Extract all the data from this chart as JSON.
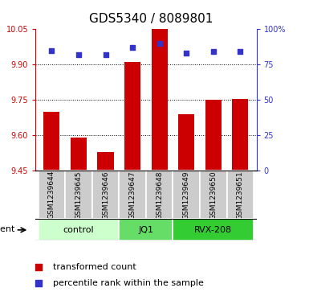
{
  "title": "GDS5340 / 8089801",
  "samples": [
    "GSM1239644",
    "GSM1239645",
    "GSM1239646",
    "GSM1239647",
    "GSM1239648",
    "GSM1239649",
    "GSM1239650",
    "GSM1239651"
  ],
  "bar_values": [
    9.7,
    9.59,
    9.53,
    9.91,
    10.05,
    9.69,
    9.75,
    9.755
  ],
  "percentile_values": [
    85,
    82,
    82,
    87,
    90,
    83,
    84,
    84
  ],
  "ylim_left": [
    9.45,
    10.05
  ],
  "ylim_right": [
    0,
    100
  ],
  "yticks_left": [
    9.45,
    9.6,
    9.75,
    9.9,
    10.05
  ],
  "yticks_right": [
    0,
    25,
    50,
    75,
    100
  ],
  "ytick_labels_right": [
    "0",
    "25",
    "50",
    "75",
    "100%"
  ],
  "grid_lines": [
    9.6,
    9.75,
    9.9
  ],
  "bar_color": "#cc0000",
  "dot_color": "#3333cc",
  "groups": [
    {
      "label": "control",
      "indices": [
        0,
        1,
        2
      ],
      "color": "#ccffcc"
    },
    {
      "label": "JQ1",
      "indices": [
        3,
        4
      ],
      "color": "#66dd66"
    },
    {
      "label": "RVX-208",
      "indices": [
        5,
        6,
        7
      ],
      "color": "#33cc33"
    }
  ],
  "agent_label": "agent",
  "legend_bar_label": "transformed count",
  "legend_dot_label": "percentile rank within the sample",
  "bar_width": 0.6,
  "sample_box_color": "#cccccc",
  "title_fontsize": 11,
  "tick_label_fontsize": 7,
  "sample_fontsize": 6.5,
  "group_fontsize": 8,
  "legend_fontsize": 8
}
